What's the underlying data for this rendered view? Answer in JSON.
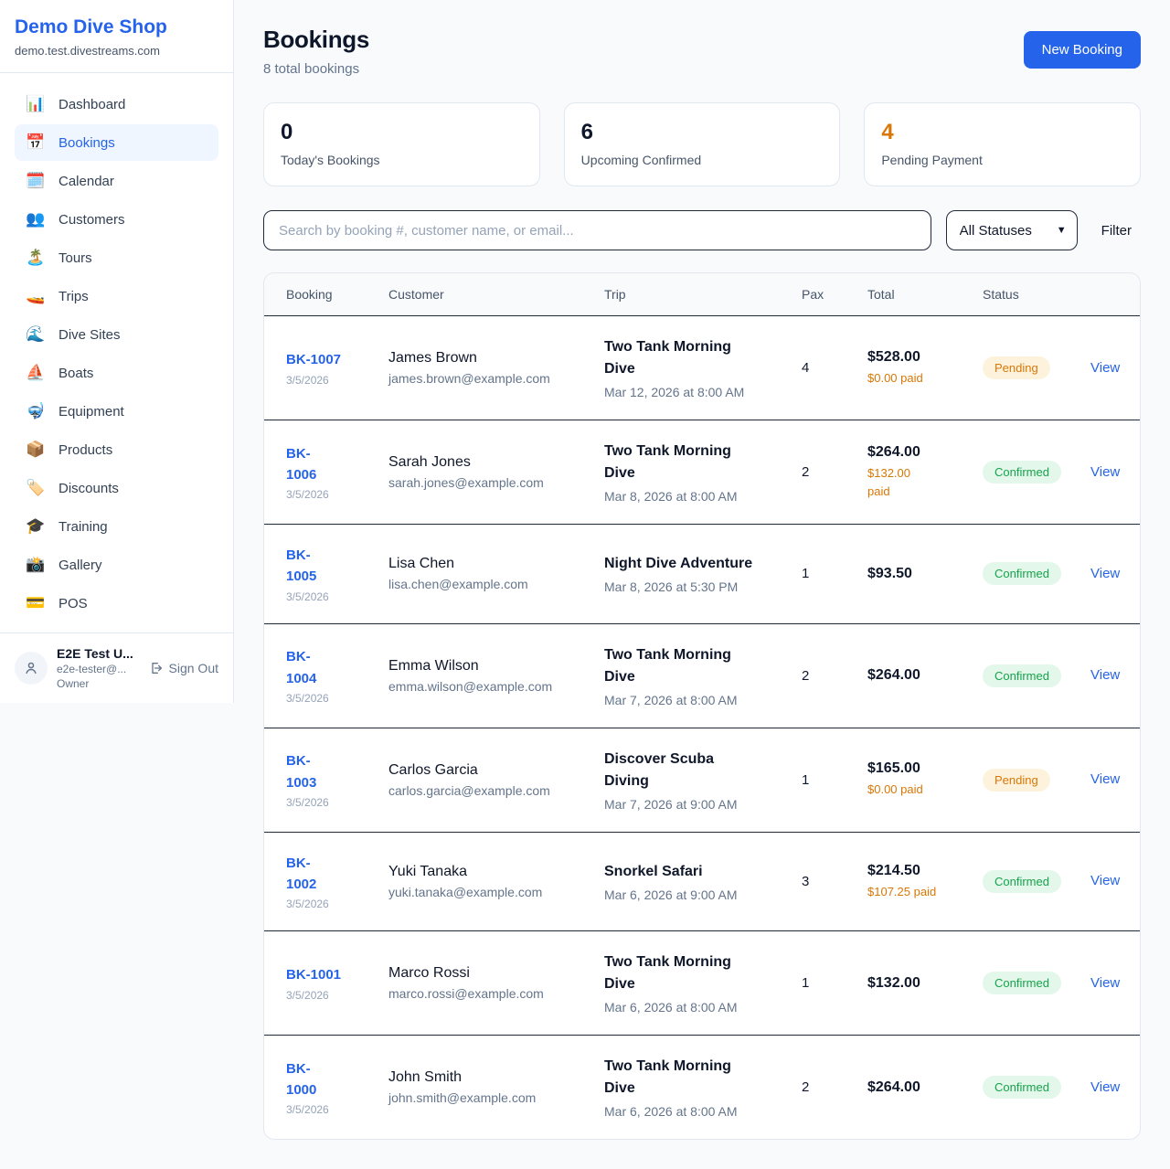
{
  "sidebar": {
    "brand": {
      "name": "Demo Dive Shop",
      "domain": "demo.test.divestreams.com"
    },
    "items": [
      {
        "label": "Dashboard",
        "icon": "📊",
        "icon_name": "dashboard-chart-icon",
        "active": false
      },
      {
        "label": "Bookings",
        "icon": "📅",
        "icon_name": "bookings-calendar-icon",
        "active": true
      },
      {
        "label": "Calendar",
        "icon": "🗓️",
        "icon_name": "calendar-icon",
        "active": false
      },
      {
        "label": "Customers",
        "icon": "👥",
        "icon_name": "customers-people-icon",
        "active": false
      },
      {
        "label": "Tours",
        "icon": "🏝️",
        "icon_name": "tours-island-icon",
        "active": false
      },
      {
        "label": "Trips",
        "icon": "🚤",
        "icon_name": "trips-speedboat-icon",
        "active": false
      },
      {
        "label": "Dive Sites",
        "icon": "🌊",
        "icon_name": "dive-sites-wave-icon",
        "active": false
      },
      {
        "label": "Boats",
        "icon": "⛵",
        "icon_name": "boats-sailboat-icon",
        "active": false
      },
      {
        "label": "Equipment",
        "icon": "🤿",
        "icon_name": "equipment-mask-icon",
        "active": false
      },
      {
        "label": "Products",
        "icon": "📦",
        "icon_name": "products-box-icon",
        "active": false
      },
      {
        "label": "Discounts",
        "icon": "🏷️",
        "icon_name": "discounts-tag-icon",
        "active": false
      },
      {
        "label": "Training",
        "icon": "🎓",
        "icon_name": "training-cap-icon",
        "active": false
      },
      {
        "label": "Gallery",
        "icon": "📸",
        "icon_name": "gallery-camera-icon",
        "active": false
      },
      {
        "label": "POS",
        "icon": "💳",
        "icon_name": "pos-card-icon",
        "active": false
      }
    ],
    "user": {
      "name": "E2E Test U...",
      "email": "e2e-tester@...",
      "role": "Owner",
      "sign_out_label": "Sign Out"
    }
  },
  "header": {
    "title": "Bookings",
    "subtitle": "8 total bookings",
    "new_booking_label": "New Booking"
  },
  "stats": [
    {
      "value": "0",
      "label": "Today's Bookings",
      "color": "#0f172a"
    },
    {
      "value": "6",
      "label": "Upcoming Confirmed",
      "color": "#0f172a"
    },
    {
      "value": "4",
      "label": "Pending Payment",
      "color": "#d97706"
    }
  ],
  "filters": {
    "search_placeholder": "Search by booking #, customer name, or email...",
    "search_value": "",
    "status_selected": "All Statuses",
    "filter_label": "Filter"
  },
  "table": {
    "columns": [
      "Booking",
      "Customer",
      "Trip",
      "Pax",
      "Total",
      "Status"
    ],
    "view_label": "View",
    "rows": [
      {
        "id": "BK-1007",
        "date": "3/5/2026",
        "customer_name": "James Brown",
        "customer_email": "james.brown@example.com",
        "trip_name": "Two Tank Morning\nDive",
        "trip_datetime": "Mar 12, 2026 at 8:00 AM",
        "pax": "4",
        "total": "$528.00",
        "paid": "$0.00 paid",
        "status": "Pending"
      },
      {
        "id": "BK-\n1006",
        "date": "3/5/2026",
        "customer_name": "Sarah Jones",
        "customer_email": "sarah.jones@example.com",
        "trip_name": "Two Tank Morning\nDive",
        "trip_datetime": "Mar 8, 2026 at 8:00 AM",
        "pax": "2",
        "total": "$264.00",
        "paid": "$132.00\npaid",
        "status": "Confirmed"
      },
      {
        "id": "BK-\n1005",
        "date": "3/5/2026",
        "customer_name": "Lisa Chen",
        "customer_email": "lisa.chen@example.com",
        "trip_name": "Night Dive Adventure",
        "trip_datetime": "Mar 8, 2026 at 5:30 PM",
        "pax": "1",
        "total": "$93.50",
        "paid": null,
        "status": "Confirmed"
      },
      {
        "id": "BK-\n1004",
        "date": "3/5/2026",
        "customer_name": "Emma Wilson",
        "customer_email": "emma.wilson@example.com",
        "trip_name": "Two Tank Morning\nDive",
        "trip_datetime": "Mar 7, 2026 at 8:00 AM",
        "pax": "2",
        "total": "$264.00",
        "paid": null,
        "status": "Confirmed"
      },
      {
        "id": "BK-\n1003",
        "date": "3/5/2026",
        "customer_name": "Carlos Garcia",
        "customer_email": "carlos.garcia@example.com",
        "trip_name": "Discover Scuba\nDiving",
        "trip_datetime": "Mar 7, 2026 at 9:00 AM",
        "pax": "1",
        "total": "$165.00",
        "paid": "$0.00 paid",
        "status": "Pending"
      },
      {
        "id": "BK-\n1002",
        "date": "3/5/2026",
        "customer_name": "Yuki Tanaka",
        "customer_email": "yuki.tanaka@example.com",
        "trip_name": "Snorkel Safari",
        "trip_datetime": "Mar 6, 2026 at 9:00 AM",
        "pax": "3",
        "total": "$214.50",
        "paid": "$107.25 paid",
        "status": "Confirmed"
      },
      {
        "id": "BK-1001",
        "date": "3/5/2026",
        "customer_name": "Marco Rossi",
        "customer_email": "marco.rossi@example.com",
        "trip_name": "Two Tank Morning\nDive",
        "trip_datetime": "Mar 6, 2026 at 8:00 AM",
        "pax": "1",
        "total": "$132.00",
        "paid": null,
        "status": "Confirmed"
      },
      {
        "id": "BK-\n1000",
        "date": "3/5/2026",
        "customer_name": "John Smith",
        "customer_email": "john.smith@example.com",
        "trip_name": "Two Tank Morning\nDive",
        "trip_datetime": "Mar 6, 2026 at 8:00 AM",
        "pax": "2",
        "total": "$264.00",
        "paid": null,
        "status": "Confirmed"
      }
    ]
  },
  "colors": {
    "brand_blue": "#2563eb",
    "accent_orange": "#d97706",
    "status": {
      "Pending": {
        "bg": "#fdf3dd",
        "text": "#d97706"
      },
      "Confirmed": {
        "bg": "#e3f7eb",
        "text": "#16a34a"
      }
    }
  }
}
